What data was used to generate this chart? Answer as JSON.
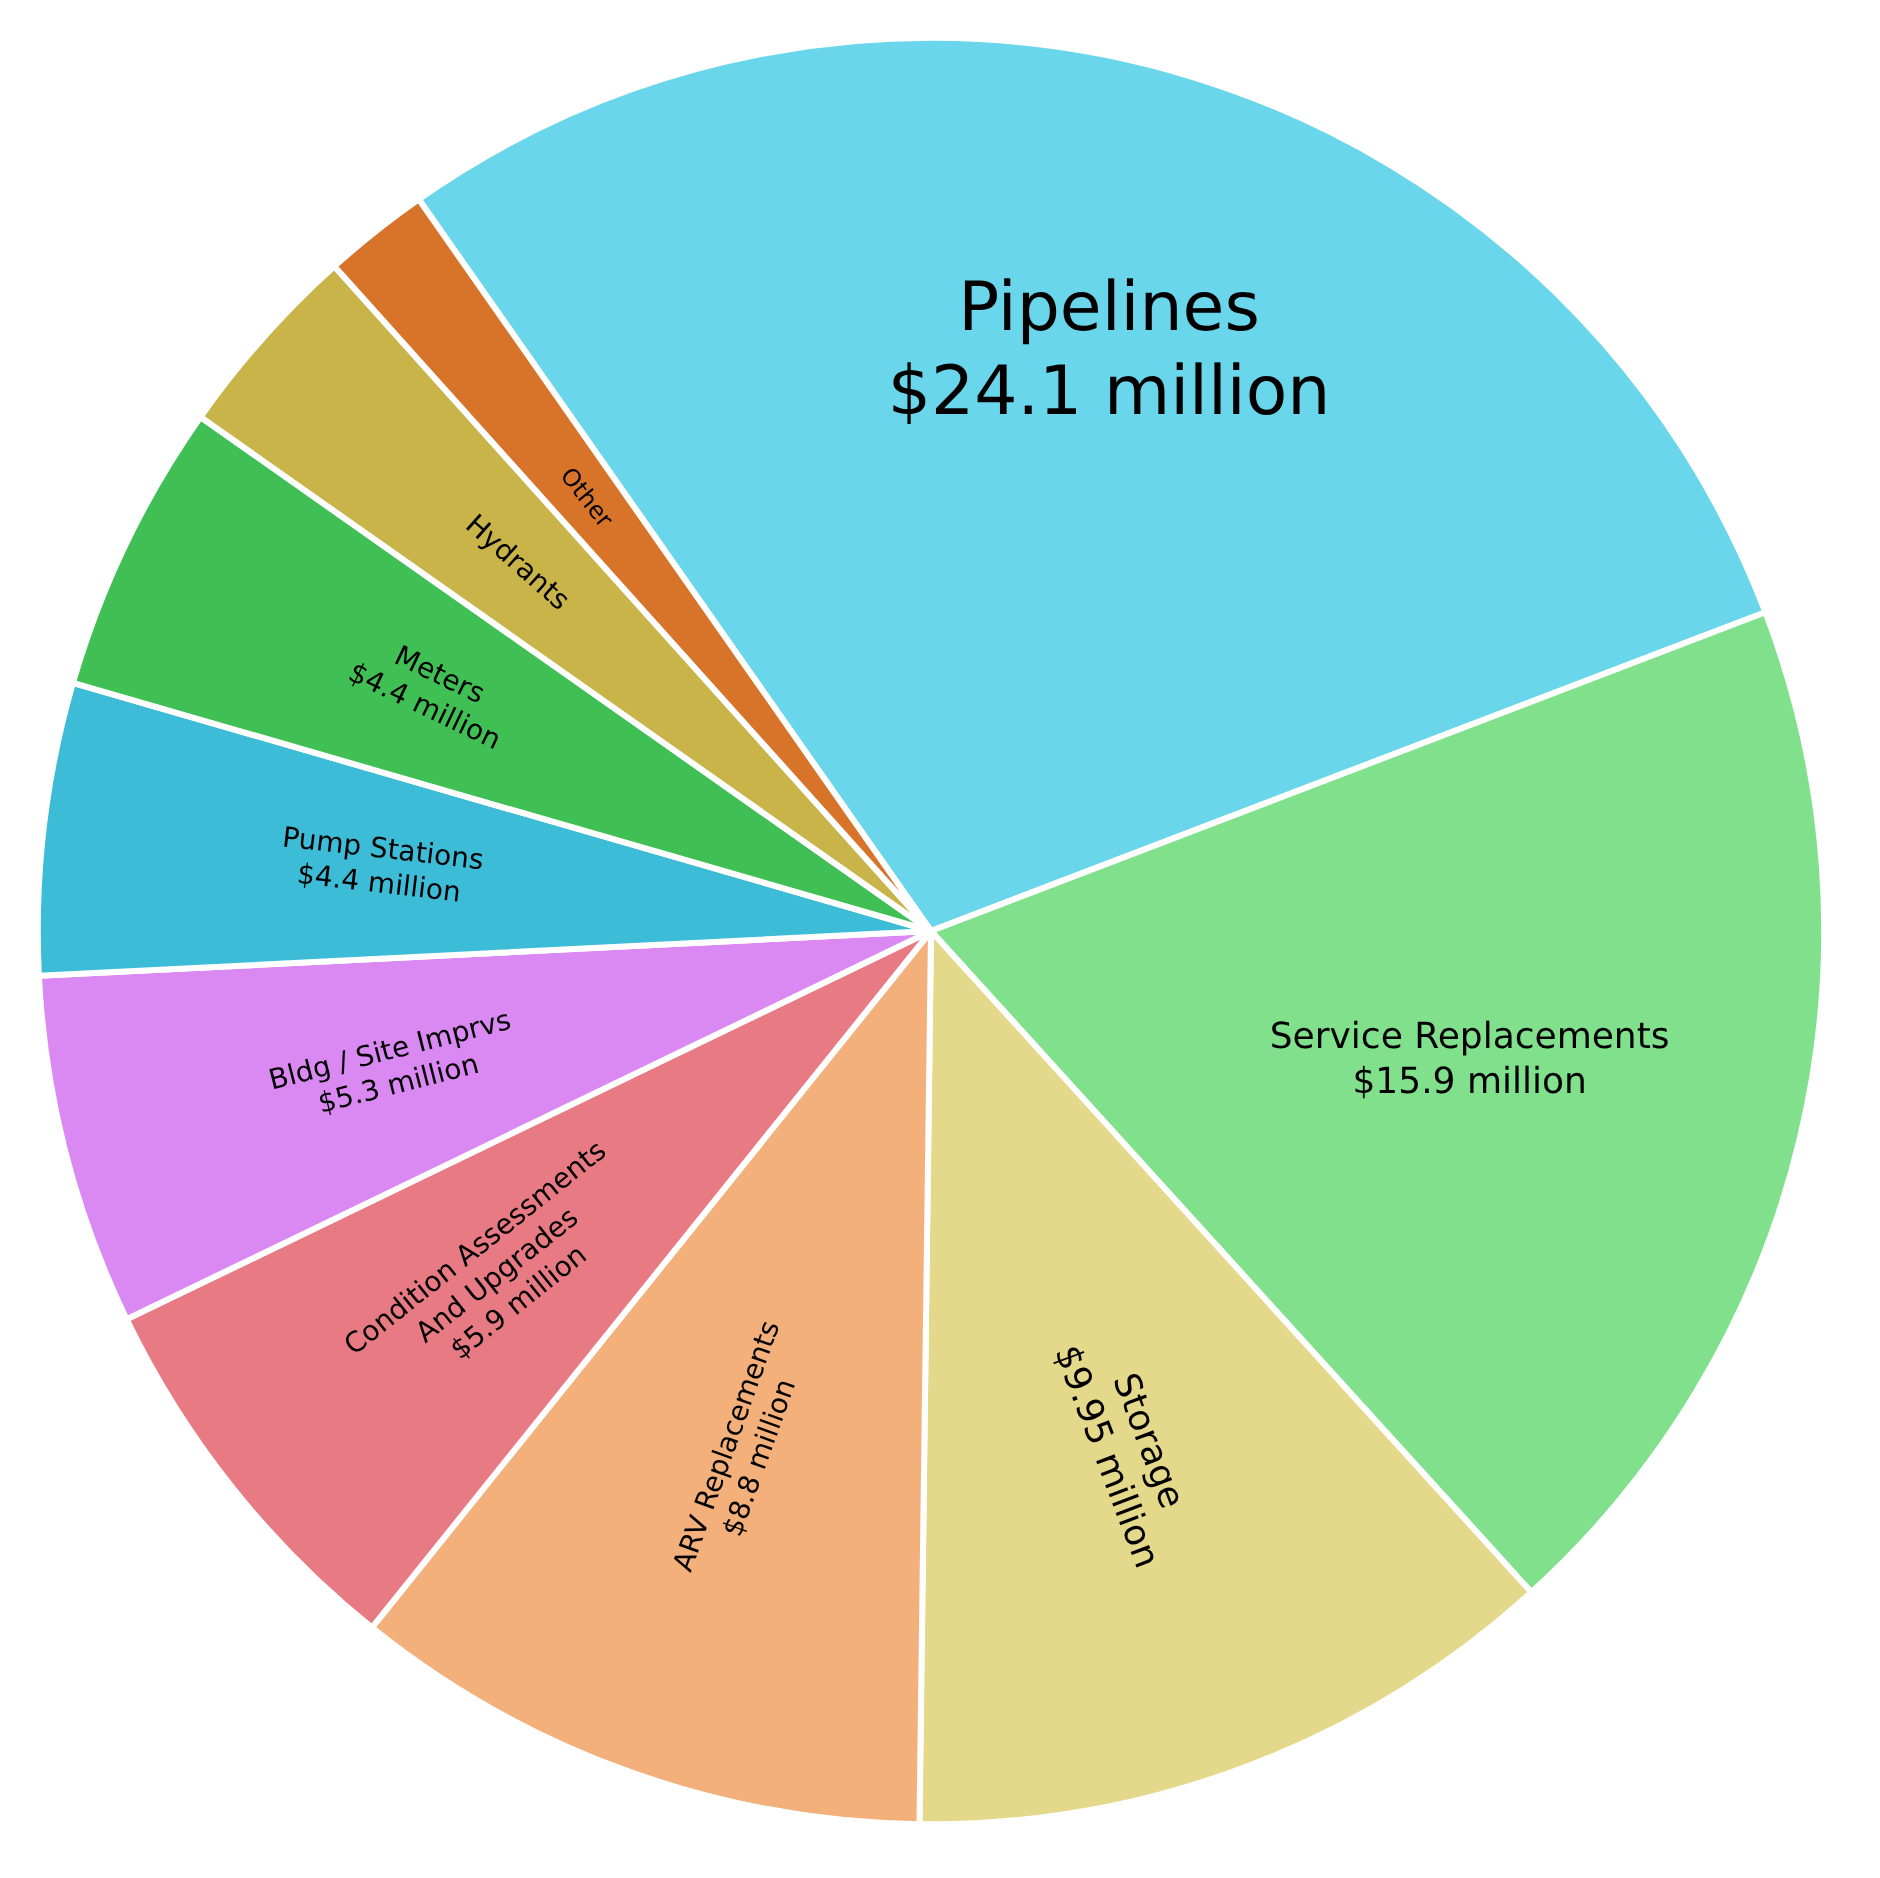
{
  "chart_data": {
    "type": "pie",
    "categories": [
      "Pipelines",
      "Service Replacements",
      "Storage",
      "ARV Replacements",
      "Condition Assessments And Upgrades",
      "Bldg / Site Imprvs",
      "Pump Stations",
      "Meters",
      "Hydrants",
      "Other"
    ],
    "values": [
      24.1,
      15.9,
      9.95,
      8.8,
      5.9,
      5.3,
      4.4,
      4.4,
      3.0,
      1.6
    ],
    "value_labels": [
      "$24.1 million",
      "$15.9 million",
      "$9.95 million",
      "$8.8 million",
      "$5.9 million",
      "$5.3 million",
      "$4.4 million",
      "$4.4 million",
      null,
      null
    ],
    "colors": [
      "#6ad6ec",
      "#80e08c",
      "#e4d98a",
      "#f4b07a",
      "#e87a84",
      "#da88f2",
      "#3cbcd6",
      "#40c054",
      "#c8b448",
      "#d8742a"
    ]
  }
}
